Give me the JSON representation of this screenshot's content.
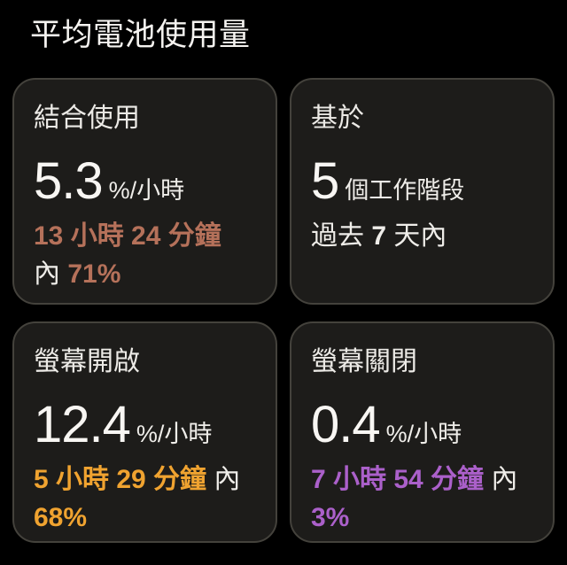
{
  "page": {
    "title": "平均電池使用量"
  },
  "colors": {
    "background": "#000000",
    "card_background": "#1d1c1a",
    "card_border": "#44423c",
    "text_primary": "#f5f3f0",
    "accent_combined": "#b5715a",
    "accent_screen_on": "#f0a330",
    "accent_screen_off": "#ab60ca"
  },
  "cards": [
    {
      "name": "combined-usage",
      "label": "結合使用",
      "value": "5.3",
      "unit": "%/小時",
      "accent": "#b5715a",
      "line1": {
        "hl": "13 小時 24 分鐘"
      },
      "line2": {
        "plain": "內",
        "hl": "71%"
      }
    },
    {
      "name": "based-on-sessions",
      "label": "基於",
      "value": "5",
      "unit": "個工作階段",
      "accent": "",
      "line1": {
        "pre": "過去",
        "bold": "7",
        "post": "天內"
      }
    },
    {
      "name": "screen-on",
      "label": "螢幕開啟",
      "value": "12.4",
      "unit": "%/小時",
      "accent": "#f0a330",
      "line1": {
        "hl": "5 小時 29 分鐘",
        "plain": "內"
      },
      "line2": {
        "hl": "68%"
      }
    },
    {
      "name": "screen-off",
      "label": "螢幕關閉",
      "value": "0.4",
      "unit": "%/小時",
      "accent": "#ab60ca",
      "line1": {
        "hl": "7 小時 54 分鐘",
        "plain": "內"
      },
      "line2": {
        "hl": "3%"
      }
    }
  ]
}
